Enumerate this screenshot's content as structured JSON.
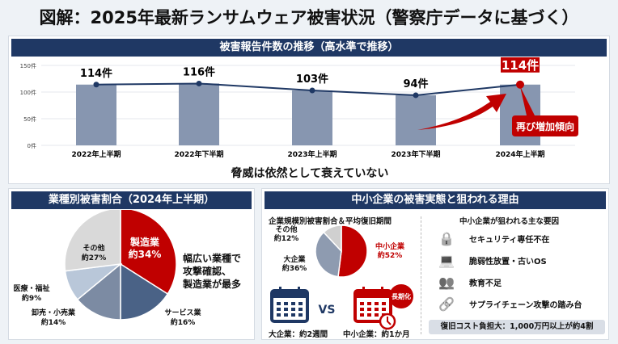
{
  "title": "図解：2025年最新ランサムウェア被害状況（警察庁データに基づく）",
  "trend": {
    "header": "被害報告件数の推移（高水準で推移）",
    "chart_data": {
      "type": "bar",
      "categories": [
        "2022年上半期",
        "2022年下半期",
        "2023年上半期",
        "2023年下半期",
        "2024年上半期"
      ],
      "values": [
        114,
        116,
        103,
        94,
        114
      ],
      "data_labels": [
        "114件",
        "116件",
        "103件",
        "94件",
        "114件"
      ],
      "yticks": [
        "0件",
        "50件",
        "100件",
        "150件"
      ],
      "ylim": [
        0,
        150
      ],
      "grid": true,
      "line_overlay": true,
      "bar_color": "#8796b0",
      "line_color": "#1f3864",
      "highlight_color": "#c00000"
    },
    "callout": "再び増加傾向",
    "caption": "脅威は依然として衰えていない"
  },
  "industry": {
    "header": "業種別被害割合（2024年上半期）",
    "chart_data": {
      "type": "pie",
      "slices": [
        {
          "name": "製造業",
          "label": "約34%",
          "value": 34,
          "color": "#c00000"
        },
        {
          "name": "サービス業",
          "label": "約16%",
          "value": 16,
          "color": "#4a6286"
        },
        {
          "name": "卸売・小売業",
          "label": "約14%",
          "value": 14,
          "color": "#7c8ba3"
        },
        {
          "name": "医療・福祉",
          "label": "約9%",
          "value": 9,
          "color": "#b9c7d9"
        },
        {
          "name": "その他",
          "label": "約27%",
          "value": 27,
          "color": "#d9d9d9"
        }
      ]
    },
    "note": [
      "幅広い業種で",
      "攻撃確認、",
      "製造業が最多"
    ]
  },
  "sme": {
    "header": "中小企業の被害実態と狙われる理由",
    "sub_left": "企業規模別被害割合＆平均復旧期間",
    "chart_data": {
      "type": "pie",
      "slices": [
        {
          "name": "中小企業",
          "label": "約52%",
          "value": 52,
          "color": "#c00000"
        },
        {
          "name": "大企業",
          "label": "約36%",
          "value": 36,
          "color": "#8e9bb0"
        },
        {
          "name": "その他",
          "label": "約12%",
          "value": 12,
          "color": "#d0d0d0"
        }
      ]
    },
    "vs": "VS",
    "badge": "長期化",
    "large_recovery": "大企業：約2週間",
    "sme_recovery": "中小企業：約1か月",
    "sub_right": "中小企業が狙われる主な要因",
    "reasons": [
      {
        "icon": "lock-icon",
        "text": "セキュリティ専任不在"
      },
      {
        "icon": "laptop-bug-icon",
        "text": "脆弱性放置・古いOS"
      },
      {
        "icon": "people-question-icon",
        "text": "教育不足"
      },
      {
        "icon": "broken-chain-icon",
        "text": "サプライチェーン攻撃の踏み台"
      }
    ],
    "cost": "復旧コスト負担大：1,000万円以上が約4割"
  }
}
